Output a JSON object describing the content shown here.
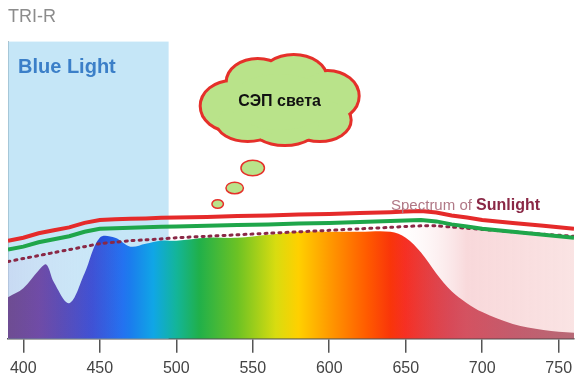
{
  "chart_data": {
    "type": "line",
    "title": "TRI-R",
    "x": [
      390,
      400,
      410,
      415,
      420,
      430,
      440,
      450,
      460,
      470,
      480,
      490,
      500,
      520,
      540,
      560,
      580,
      600,
      620,
      640,
      650,
      660,
      670,
      680,
      690,
      700,
      720,
      740,
      760
    ],
    "xlim": [
      390,
      760
    ],
    "xticks": [
      400,
      450,
      500,
      550,
      600,
      650,
      700,
      750
    ],
    "ylim": [
      0,
      100
    ],
    "tick_labels": "x",
    "grid": false,
    "series": [
      {
        "type": "area",
        "values": [
          14,
          17,
          23,
          25,
          19,
          12,
          22,
          34,
          34,
          31,
          32,
          33,
          33,
          34,
          34,
          35,
          36,
          36,
          36,
          36,
          34,
          29,
          22,
          16,
          12,
          9,
          5,
          3,
          2
        ]
      },
      {
        "name": "Spectrum of Sunlight",
        "color": "#8a2846",
        "line_style": "dotted",
        "values": [
          26,
          27,
          28,
          28.5,
          29,
          30,
          31,
          32,
          32.5,
          33,
          33.3,
          33.6,
          34,
          34.5,
          35,
          35.5,
          36,
          36.5,
          37,
          37.5,
          37.8,
          38,
          38,
          37.6,
          37.2,
          36.8,
          36,
          35.2,
          34.5
        ]
      },
      {
        "color": "#1fa64a",
        "line_style": "solid",
        "values": [
          30,
          31,
          32.5,
          33,
          33.5,
          34.5,
          36,
          37,
          37.2,
          37.4,
          37.5,
          37.7,
          37.8,
          38,
          38.3,
          38.5,
          38.8,
          39,
          39.3,
          39.6,
          39.8,
          40,
          39.5,
          38.5,
          37.8,
          37,
          36,
          35,
          34
        ]
      },
      {
        "color": "#e52a2a",
        "line_style": "solid",
        "values": [
          33,
          34,
          35.5,
          36,
          36.5,
          37.5,
          39,
          40,
          40.2,
          40.4,
          40.5,
          40.7,
          40.8,
          41,
          41.3,
          41.5,
          41.8,
          42,
          42.3,
          42.6,
          42.8,
          43,
          42.5,
          41.5,
          40.8,
          40,
          39,
          38,
          37
        ]
      }
    ],
    "annotations": [
      {
        "text": "Blue Light",
        "xrange": [
          390,
          495
        ]
      },
      {
        "text": "СЭП света"
      }
    ]
  }
}
